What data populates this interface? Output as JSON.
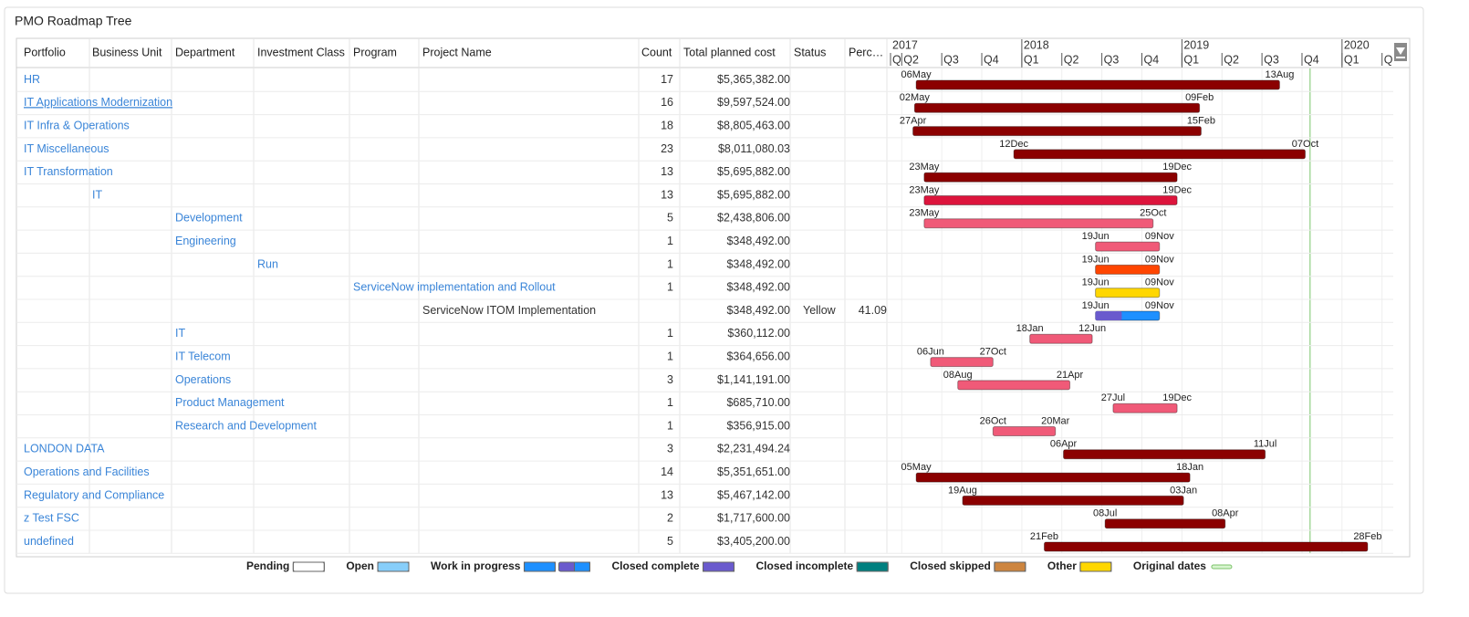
{
  "title": "PMO Roadmap Tree",
  "columns": [
    "Portfolio",
    "Business Unit",
    "Department",
    "Investment Class",
    "Program",
    "Project Name",
    "Count",
    "Total planned cost",
    "Status",
    "Perc…"
  ],
  "timeline": {
    "xlim": [
      2017.18,
      2020.32
    ],
    "years": [
      2017,
      2018,
      2019,
      2020
    ],
    "quarters": [
      {
        "value": 2017.0,
        "label": "Q"
      },
      {
        "value": 2017.25,
        "label": "Q2"
      },
      {
        "value": 2017.5,
        "label": "Q3"
      },
      {
        "value": 2017.75,
        "label": "Q4"
      },
      {
        "value": 2018.0,
        "label": "Q1"
      },
      {
        "value": 2018.25,
        "label": "Q2"
      },
      {
        "value": 2018.5,
        "label": "Q3"
      },
      {
        "value": 2018.75,
        "label": "Q4"
      },
      {
        "value": 2019.0,
        "label": "Q1"
      },
      {
        "value": 2019.25,
        "label": "Q2"
      },
      {
        "value": 2019.5,
        "label": "Q3"
      },
      {
        "value": 2019.75,
        "label": "Q4"
      },
      {
        "value": 2020.0,
        "label": "Q1"
      },
      {
        "value": 2020.25,
        "label": "Q"
      }
    ],
    "marker": {
      "value": 2019.8,
      "color": "#a6d89c"
    }
  },
  "rows": [
    {
      "level": 0,
      "label": "HR",
      "link": true,
      "count": 17,
      "cost": "$5,365,382.00",
      "bar": {
        "start": 2017.34,
        "end": 2019.61,
        "start_label": "06May",
        "end_label": "13Aug",
        "color": "#8b0000"
      }
    },
    {
      "level": 0,
      "label": "IT Applications Modernization",
      "link": true,
      "underlined": true,
      "count": 16,
      "cost": "$9,597,524.00",
      "bar": {
        "start": 2017.33,
        "end": 2019.11,
        "start_label": "02May",
        "end_label": "09Feb",
        "color": "#8b0000"
      }
    },
    {
      "level": 0,
      "label": "IT Infra & Operations",
      "link": true,
      "count": 18,
      "cost": "$8,805,463.00",
      "bar": {
        "start": 2017.32,
        "end": 2019.12,
        "start_label": "27Apr",
        "end_label": "15Feb",
        "color": "#8b0000"
      }
    },
    {
      "level": 0,
      "label": "IT Miscellaneous",
      "link": true,
      "count": 23,
      "cost": "$8,011,080.03",
      "bar": {
        "start": 2017.95,
        "end": 2019.77,
        "start_label": "12Dec",
        "end_label": "07Oct",
        "color": "#8b0000"
      }
    },
    {
      "level": 0,
      "label": "IT Transformation",
      "link": true,
      "count": 13,
      "cost": "$5,695,882.00",
      "bar": {
        "start": 2017.39,
        "end": 2018.97,
        "start_label": "23May",
        "end_label": "19Dec",
        "color": "#8b0000"
      }
    },
    {
      "level": 1,
      "label": "IT",
      "link": true,
      "count": 13,
      "cost": "$5,695,882.00",
      "bar": {
        "start": 2017.39,
        "end": 2018.97,
        "start_label": "23May",
        "end_label": "19Dec",
        "color": "#dc143c"
      }
    },
    {
      "level": 2,
      "label": "Development",
      "link": true,
      "count": 5,
      "cost": "$2,438,806.00",
      "bar": {
        "start": 2017.39,
        "end": 2018.82,
        "start_label": "23May",
        "end_label": "25Oct",
        "color": "#f05a78"
      }
    },
    {
      "level": 2,
      "label": "Engineering",
      "link": true,
      "count": 1,
      "cost": "$348,492.00",
      "bar": {
        "start": 2018.46,
        "end": 2018.86,
        "start_label": "19Jun",
        "end_label": "09Nov",
        "color": "#f05a78"
      }
    },
    {
      "level": 3,
      "label": "Run",
      "link": true,
      "count": 1,
      "cost": "$348,492.00",
      "bar": {
        "start": 2018.46,
        "end": 2018.86,
        "start_label": "19Jun",
        "end_label": "09Nov",
        "color": "#ff4500"
      }
    },
    {
      "level": 4,
      "label": "ServiceNow implementation and Rollout",
      "link": true,
      "count": 1,
      "cost": "$348,492.00",
      "bar": {
        "start": 2018.46,
        "end": 2018.86,
        "start_label": "19Jun",
        "end_label": "09Nov",
        "color": "#ffd700"
      }
    },
    {
      "level": 5,
      "label": "ServiceNow ITOM Implementation",
      "link": false,
      "cost": "$348,492.00",
      "status": "Yellow",
      "perc": 41.09,
      "bar": {
        "start": 2018.46,
        "end": 2018.86,
        "start_label": "19Jun",
        "end_label": "09Nov",
        "color": "#1e90ff",
        "progress_color": "#6a5acd"
      }
    },
    {
      "level": 2,
      "label": "IT",
      "link": true,
      "count": 1,
      "cost": "$360,112.00",
      "bar": {
        "start": 2018.05,
        "end": 2018.44,
        "start_label": "18Jan",
        "end_label": "12Jun",
        "color": "#f05a78"
      }
    },
    {
      "level": 2,
      "label": "IT Telecom",
      "link": true,
      "count": 1,
      "cost": "$364,656.00",
      "bar": {
        "start": 2017.43,
        "end": 2017.82,
        "start_label": "06Jun",
        "end_label": "27Oct",
        "color": "#f05a78"
      }
    },
    {
      "level": 2,
      "label": "Operations",
      "link": true,
      "count": 3,
      "cost": "$1,141,191.00",
      "bar": {
        "start": 2017.6,
        "end": 2018.3,
        "start_label": "08Aug",
        "end_label": "21Apr",
        "color": "#f05a78"
      }
    },
    {
      "level": 2,
      "label": "Product Management",
      "link": true,
      "count": 1,
      "cost": "$685,710.00",
      "bar": {
        "start": 2018.57,
        "end": 2018.97,
        "start_label": "27Jul",
        "end_label": "19Dec",
        "color": "#f05a78"
      }
    },
    {
      "level": 2,
      "label": "Research and Development",
      "link": true,
      "count": 1,
      "cost": "$356,915.00",
      "bar": {
        "start": 2017.82,
        "end": 2018.21,
        "start_label": "26Oct",
        "end_label": "20Mar",
        "color": "#f05a78"
      }
    },
    {
      "level": 0,
      "label": "LONDON DATA",
      "link": true,
      "count": 3,
      "cost": "$2,231,494.24",
      "bar": {
        "start": 2018.26,
        "end": 2019.52,
        "start_label": "06Apr",
        "end_label": "11Jul",
        "color": "#8b0000"
      }
    },
    {
      "level": 0,
      "label": "Operations and Facilities",
      "link": true,
      "count": 14,
      "cost": "$5,351,651.00",
      "bar": {
        "start": 2017.34,
        "end": 2019.05,
        "start_label": "05May",
        "end_label": "18Jan",
        "color": "#8b0000"
      }
    },
    {
      "level": 0,
      "label": "Regulatory and Compliance",
      "link": true,
      "count": 13,
      "cost": "$5,467,142.00",
      "bar": {
        "start": 2017.63,
        "end": 2019.01,
        "start_label": "19Aug",
        "end_label": "03Jan",
        "color": "#8b0000"
      }
    },
    {
      "level": 0,
      "label": "z Test FSC",
      "link": true,
      "count": 2,
      "cost": "$1,717,600.00",
      "bar": {
        "start": 2018.52,
        "end": 2019.27,
        "start_label": "08Jul",
        "end_label": "08Apr",
        "color": "#8b0000"
      }
    },
    {
      "level": 0,
      "label": "undefined",
      "link": true,
      "count": 5,
      "cost": "$3,405,200.00",
      "bar": {
        "start": 2018.14,
        "end": 2020.16,
        "start_label": "21Feb",
        "end_label": "28Feb",
        "color": "#8b0000"
      }
    }
  ],
  "legend": [
    {
      "name": "Pending",
      "colors": [
        [
          "#ffffff"
        ]
      ]
    },
    {
      "name": "Open",
      "colors": [
        [
          "#87cefa"
        ]
      ]
    },
    {
      "name": "Work in progress",
      "colors": [
        [
          "#1e90ff"
        ],
        [
          "#6a5acd",
          "#1e90ff"
        ]
      ]
    },
    {
      "name": "Closed complete",
      "colors": [
        [
          "#6a5acd"
        ]
      ]
    },
    {
      "name": "Closed incomplete",
      "colors": [
        [
          "#008080"
        ]
      ]
    },
    {
      "name": "Closed skipped",
      "colors": [
        [
          "#cd853f"
        ]
      ]
    },
    {
      "name": "Other",
      "colors": [
        [
          "#ffd700"
        ]
      ]
    },
    {
      "name": "Original dates",
      "colors": [
        [
          "#d8f5d0"
        ]
      ],
      "swatch": "line"
    }
  ]
}
